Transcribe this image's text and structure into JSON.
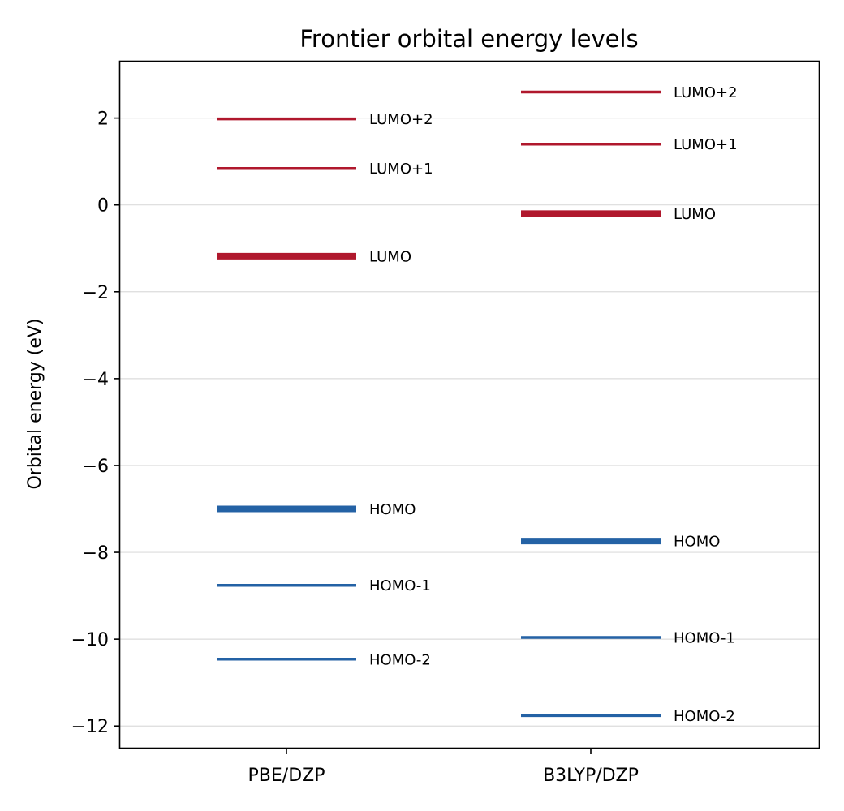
{
  "chart_data": {
    "type": "energy-level-diagram",
    "title": "Frontier orbital energy levels",
    "ylabel": "Orbital energy (eV)",
    "xlabel": "",
    "ylim": [
      -12.5,
      3.3
    ],
    "yticks": [
      2,
      0,
      -2,
      -4,
      -6,
      -8,
      -10,
      -12
    ],
    "ytick_labels": [
      "2",
      "0",
      "−2",
      "−4",
      "−6",
      "−8",
      "−10",
      "−12"
    ],
    "grid": "horizontal",
    "categories": [
      "PBE/DZP",
      "B3LYP/DZP"
    ],
    "colors": {
      "occupied": "#2462a5",
      "virtual": "#b0182d",
      "grid": "#dcdcdc",
      "axis": "#000000"
    },
    "series": [
      {
        "method": "PBE/DZP",
        "levels": [
          {
            "label": "LUMO+2",
            "energy": 1.98,
            "kind": "virtual",
            "frontier": false
          },
          {
            "label": "LUMO+1",
            "energy": 0.84,
            "kind": "virtual",
            "frontier": false
          },
          {
            "label": "LUMO",
            "energy": -1.18,
            "kind": "virtual",
            "frontier": true
          },
          {
            "label": "HOMO",
            "energy": -7.0,
            "kind": "occupied",
            "frontier": true
          },
          {
            "label": "HOMO-1",
            "energy": -8.76,
            "kind": "occupied",
            "frontier": false
          },
          {
            "label": "HOMO-2",
            "energy": -10.46,
            "kind": "occupied",
            "frontier": false
          }
        ]
      },
      {
        "method": "B3LYP/DZP",
        "levels": [
          {
            "label": "LUMO+2",
            "energy": 2.6,
            "kind": "virtual",
            "frontier": false
          },
          {
            "label": "LUMO+1",
            "energy": 1.4,
            "kind": "virtual",
            "frontier": false
          },
          {
            "label": "LUMO",
            "energy": -0.2,
            "kind": "virtual",
            "frontier": true
          },
          {
            "label": "HOMO",
            "energy": -7.74,
            "kind": "occupied",
            "frontier": true
          },
          {
            "label": "HOMO-1",
            "energy": -9.96,
            "kind": "occupied",
            "frontier": false
          },
          {
            "label": "HOMO-2",
            "energy": -11.76,
            "kind": "occupied",
            "frontier": false
          }
        ]
      }
    ]
  }
}
